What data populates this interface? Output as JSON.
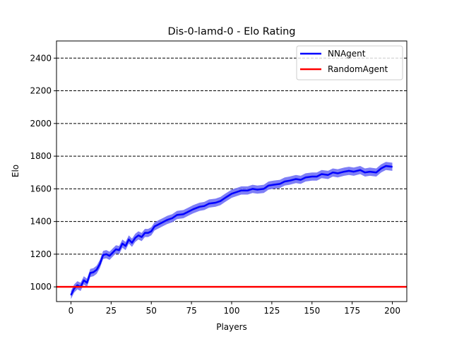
{
  "chart_data": {
    "type": "line",
    "title": "Dis-0-lamd-0 - Elo Rating",
    "xlabel": "Players",
    "ylabel": "Elo",
    "xlim": [
      -9,
      209
    ],
    "ylim": [
      910,
      2505
    ],
    "xticks": [
      0,
      25,
      50,
      75,
      100,
      125,
      150,
      175,
      200
    ],
    "yticks": [
      1000,
      1200,
      1400,
      1600,
      1800,
      2000,
      2200,
      2400
    ],
    "grid": "horizontal dashed",
    "legend_position": "top-right",
    "series": [
      {
        "name": "NNAgent",
        "color": "#0000ff",
        "band_color": "#7070f5",
        "x": [
          0,
          2,
          4,
          6,
          8,
          10,
          12,
          14,
          16,
          18,
          20,
          22,
          24,
          26,
          28,
          30,
          32,
          34,
          36,
          38,
          40,
          42,
          44,
          46,
          48,
          50,
          52,
          55,
          58,
          60,
          63,
          66,
          70,
          73,
          76,
          80,
          83,
          86,
          90,
          93,
          96,
          100,
          103,
          106,
          110,
          113,
          116,
          120,
          123,
          126,
          130,
          133,
          136,
          140,
          143,
          146,
          150,
          153,
          156,
          160,
          163,
          166,
          170,
          173,
          176,
          180,
          183,
          186,
          190,
          193,
          196,
          200
        ],
        "y": [
          950,
          990,
          1010,
          1000,
          1040,
          1025,
          1085,
          1090,
          1105,
          1140,
          1195,
          1200,
          1190,
          1210,
          1230,
          1225,
          1265,
          1250,
          1290,
          1270,
          1300,
          1315,
          1305,
          1330,
          1330,
          1340,
          1370,
          1385,
          1400,
          1410,
          1420,
          1440,
          1445,
          1460,
          1475,
          1490,
          1495,
          1510,
          1515,
          1525,
          1545,
          1570,
          1580,
          1590,
          1590,
          1600,
          1595,
          1600,
          1620,
          1625,
          1630,
          1645,
          1650,
          1660,
          1655,
          1670,
          1675,
          1675,
          1690,
          1685,
          1700,
          1695,
          1705,
          1710,
          1705,
          1715,
          1700,
          1705,
          1700,
          1725,
          1740,
          1735
        ],
        "band_halfwidth": [
          25,
          25,
          25,
          25,
          25,
          25,
          25,
          25,
          25,
          25,
          25,
          25,
          25,
          25,
          25,
          25,
          25,
          25,
          25,
          25,
          25,
          25,
          25,
          25,
          25,
          25,
          25,
          25,
          25,
          25,
          25,
          25,
          25,
          25,
          25,
          25,
          25,
          25,
          25,
          25,
          25,
          25,
          25,
          25,
          25,
          25,
          25,
          25,
          25,
          25,
          25,
          25,
          25,
          25,
          25,
          25,
          25,
          25,
          25,
          25,
          25,
          25,
          25,
          25,
          25,
          25,
          25,
          25,
          25,
          25,
          25,
          25
        ]
      },
      {
        "name": "RandomAgent",
        "color": "#ff0000",
        "x": [
          -9,
          209
        ],
        "y": [
          1000,
          1000
        ]
      }
    ]
  }
}
